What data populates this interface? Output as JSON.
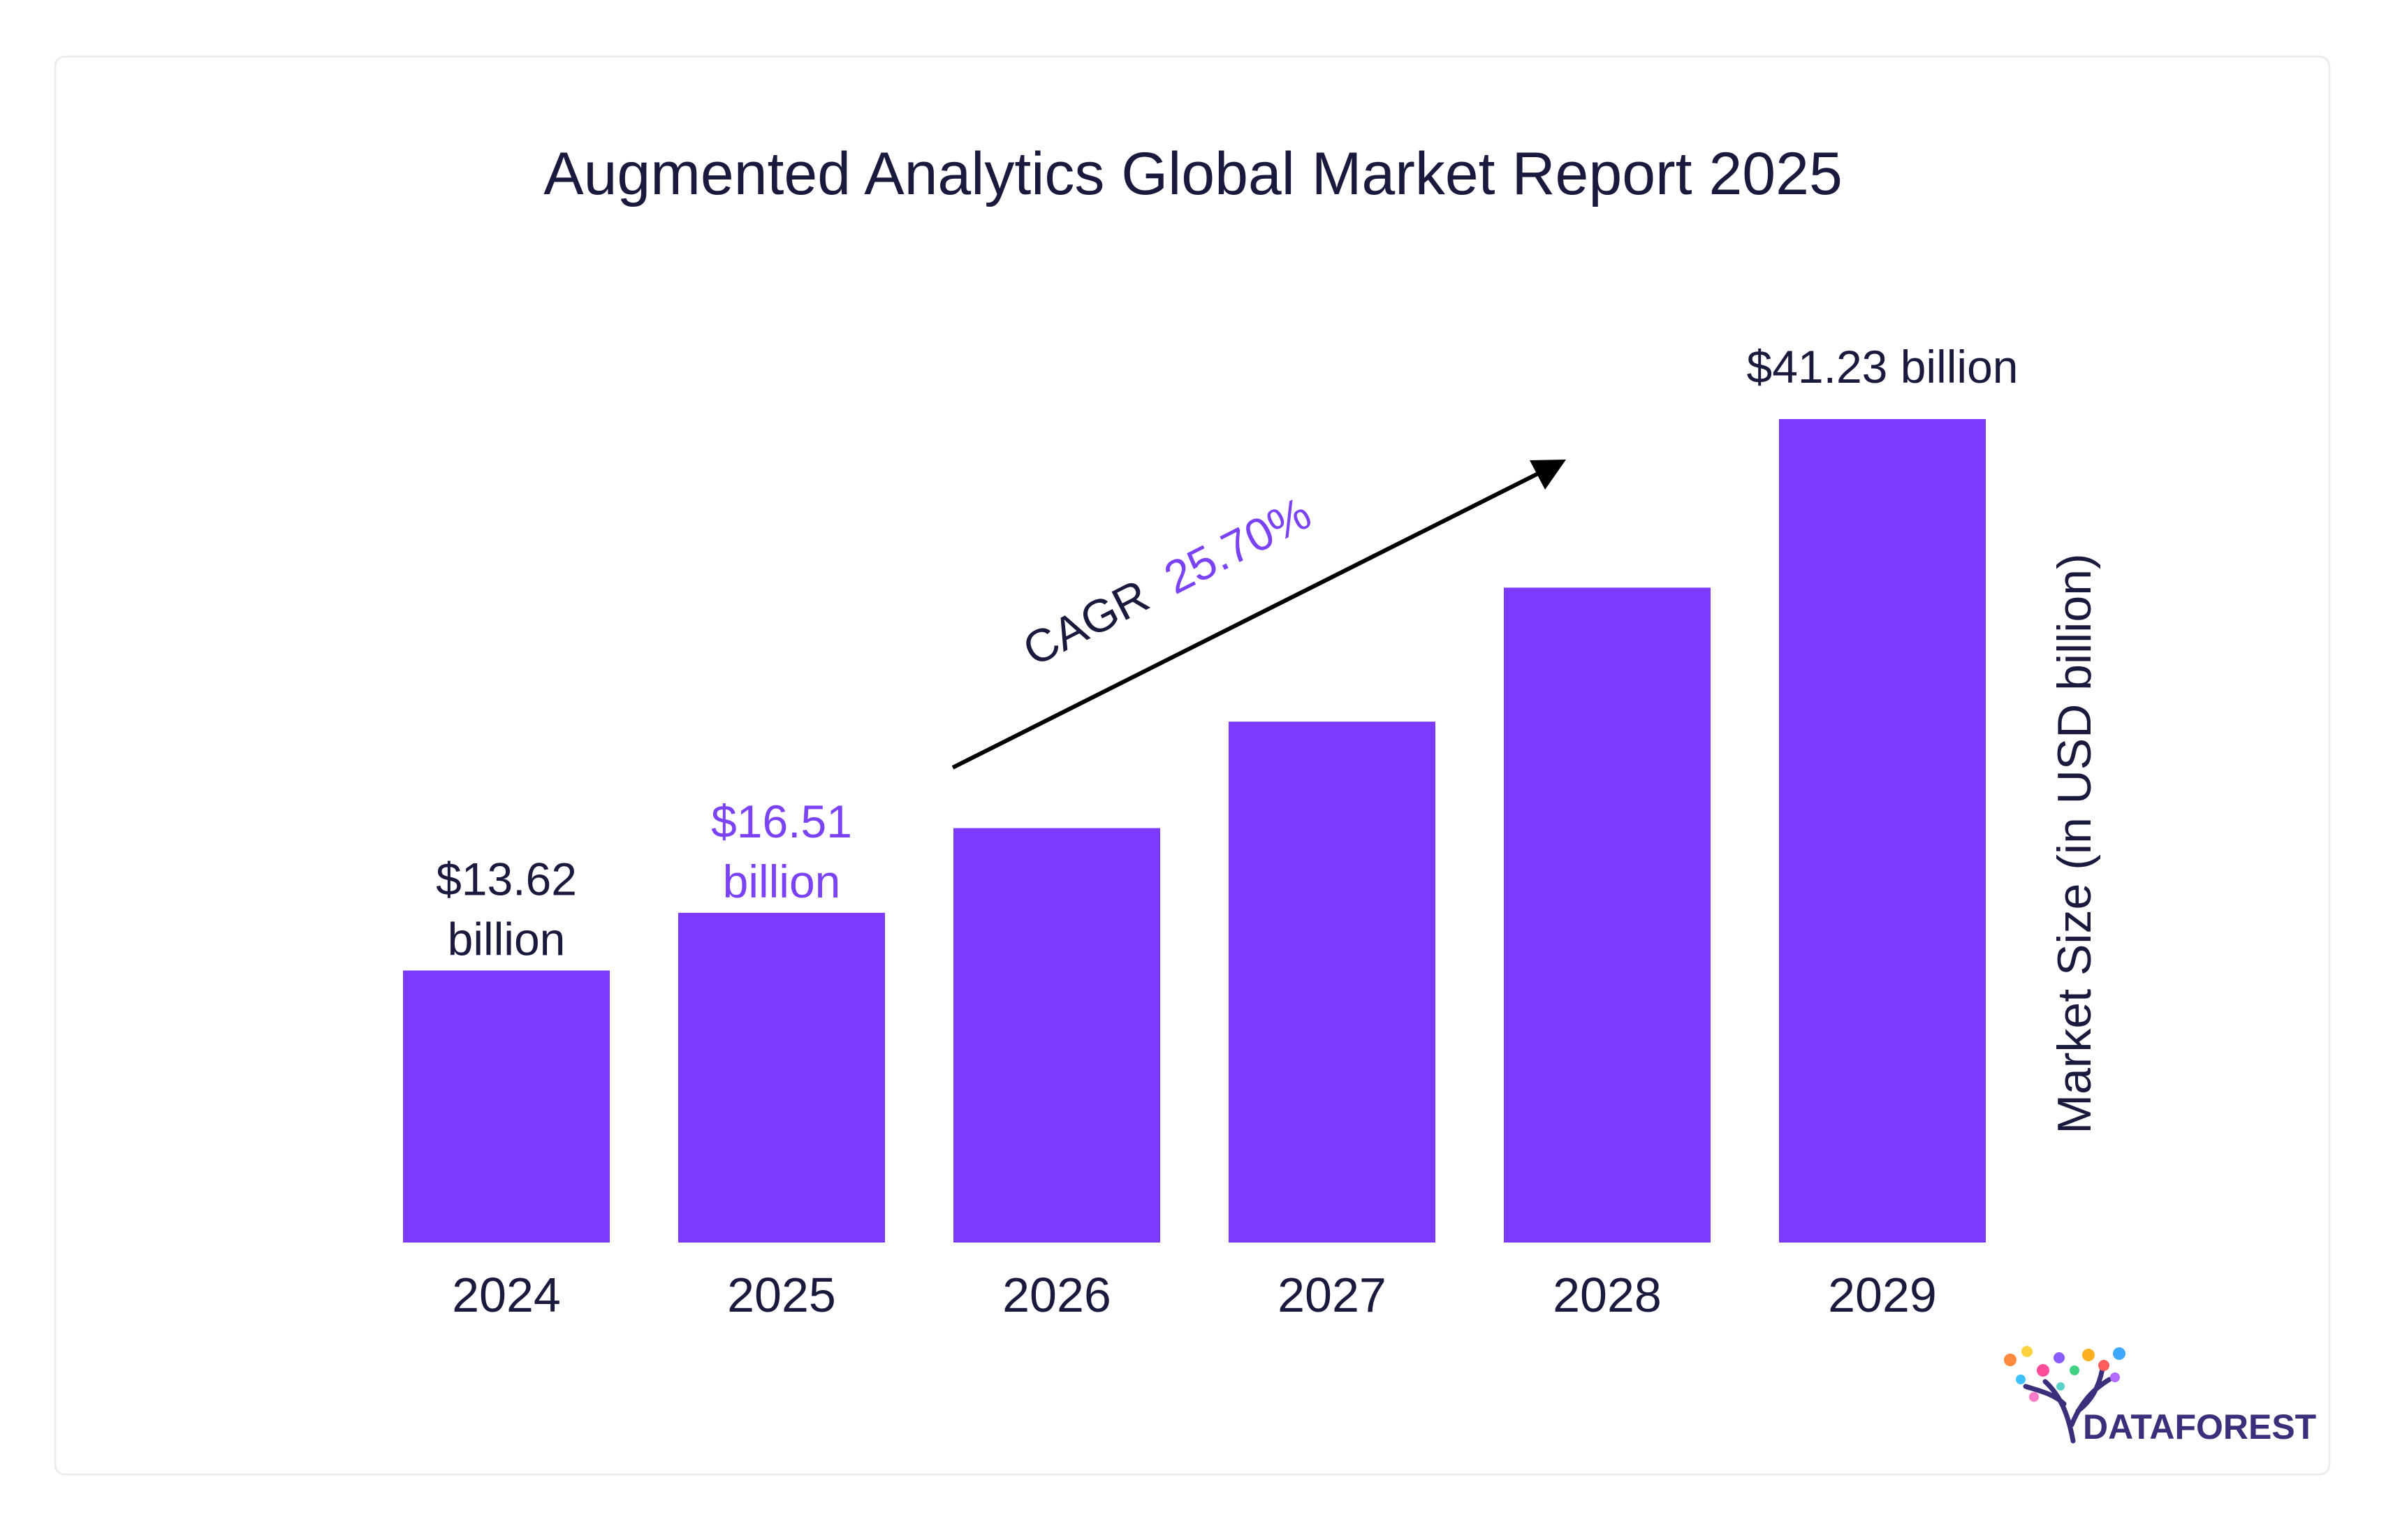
{
  "chart_data": {
    "type": "bar",
    "title": "Augmented Analytics Global Market Report 2025",
    "categories": [
      "2024",
      "2025",
      "2026",
      "2027",
      "2028",
      "2029"
    ],
    "values": [
      13.62,
      16.51,
      20.75,
      26.08,
      32.79,
      41.23
    ],
    "ylabel": "Market Size (in USD billion)",
    "xlabel": "",
    "ylim": [
      0,
      41.23
    ],
    "grid": false,
    "legend": "none",
    "data_labels": [
      {
        "index": 0,
        "line1": "$13.62",
        "line2": "billion",
        "color": "#1a1a3e"
      },
      {
        "index": 1,
        "line1": "$16.51",
        "line2": "billion",
        "color": "#7b42f6"
      },
      {
        "index": 5,
        "line1": "$41.23 billion",
        "line2": "",
        "color": "#1a1a3e"
      }
    ],
    "annotation": {
      "prefix": "CAGR",
      "value": "25.70%"
    }
  },
  "colors": {
    "bar": "#7c3aff",
    "text": "#1a1a3e",
    "accent": "#7b42f6"
  },
  "logo": {
    "text": "DATAFOREST"
  }
}
